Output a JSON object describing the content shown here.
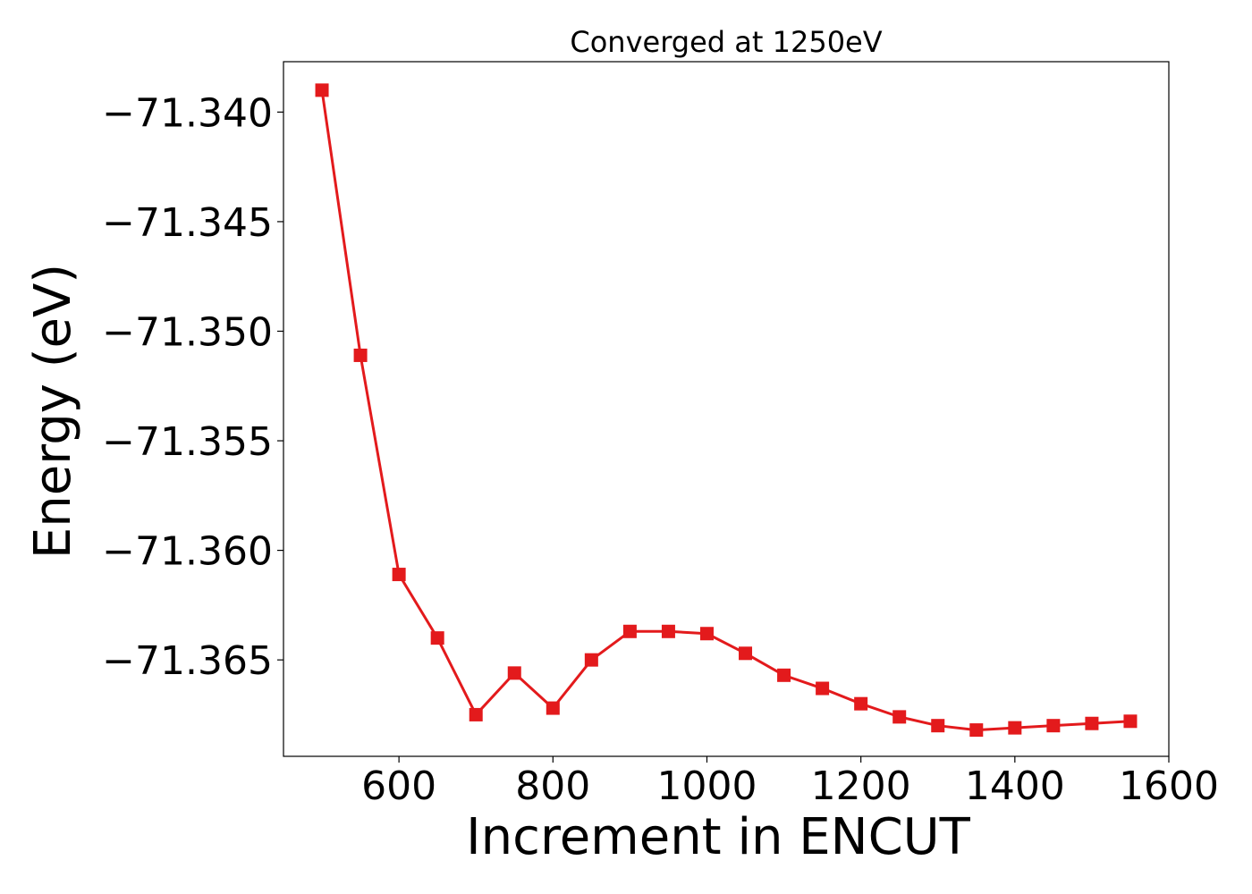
{
  "chart_data": {
    "type": "line",
    "title": "Converged at 1250eV",
    "xlabel": "Increment in ENCUT",
    "ylabel": "Energy (eV)",
    "xlim": [
      450,
      1600
    ],
    "ylim": [
      -71.3694,
      -71.3377
    ],
    "xticks": [
      600,
      800,
      1000,
      1200,
      1400,
      1600
    ],
    "xtick_labels": [
      "600",
      "800",
      "1000",
      "1200",
      "1400",
      "1600"
    ],
    "yticks": [
      -71.34,
      -71.345,
      -71.35,
      -71.355,
      -71.36,
      -71.365
    ],
    "ytick_labels": [
      "−71.340",
      "−71.345",
      "−71.350",
      "−71.355",
      "−71.360",
      "−71.365"
    ],
    "grid": false,
    "series": [
      {
        "color": "#e31a1c",
        "marker": "square",
        "x": [
          500,
          550,
          600,
          650,
          700,
          750,
          800,
          850,
          900,
          950,
          1000,
          1050,
          1100,
          1150,
          1200,
          1250,
          1300,
          1350,
          1400,
          1450,
          1500,
          1550
        ],
        "y": [
          -71.339,
          -71.3511,
          -71.3611,
          -71.364,
          -71.3675,
          -71.3656,
          -71.3672,
          -71.365,
          -71.3637,
          -71.3637,
          -71.3638,
          -71.3647,
          -71.3657,
          -71.3663,
          -71.367,
          -71.3676,
          -71.368,
          -71.3682,
          -71.3681,
          -71.368,
          -71.3679,
          -71.3678
        ]
      }
    ]
  }
}
